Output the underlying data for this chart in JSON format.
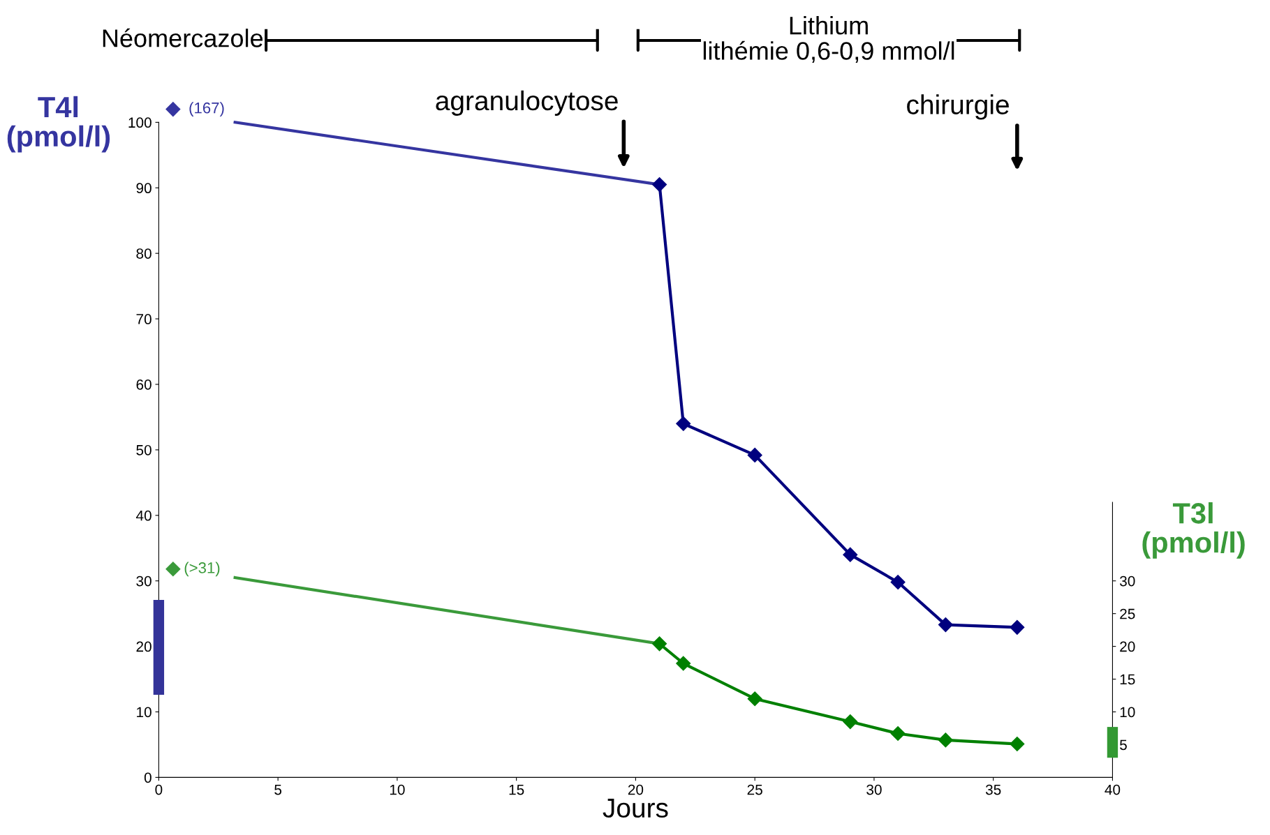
{
  "chart_data": {
    "type": "line",
    "xlabel": "Jours",
    "ylabel": "T4l\n(pmol/l)",
    "y2label": "T3l\n(pmol/l)",
    "xlim": [
      0,
      40
    ],
    "xticks": [
      0,
      5,
      10,
      15,
      20,
      25,
      30,
      35,
      40
    ],
    "ylim": [
      0,
      100
    ],
    "yticks": [
      0,
      10,
      20,
      30,
      40,
      50,
      60,
      70,
      80,
      90,
      100
    ],
    "y2lim": [
      0,
      42
    ],
    "y2ticks": [
      5,
      10,
      15,
      20,
      25,
      30
    ],
    "series": [
      {
        "color": "#3535a0",
        "marker": "none",
        "x": [
          3.2,
          21
        ],
        "values": [
          100,
          90.5
        ]
      },
      {
        "color": "#00007f",
        "marker": "diamond",
        "x": [
          21,
          22,
          25,
          29,
          31,
          33,
          36
        ],
        "values": [
          90.5,
          54,
          49.2,
          34,
          29.8,
          23.3,
          22.9
        ]
      },
      {
        "axis": "y2",
        "color": "#3a9a3a",
        "marker": "none",
        "x": [
          3.2,
          21
        ],
        "values": [
          30.5,
          20.4
        ]
      },
      {
        "axis": "y2",
        "color": "#008000",
        "marker": "diamond",
        "x": [
          21,
          22,
          25,
          29,
          31,
          33,
          36
        ],
        "values": [
          20.4,
          17.4,
          12.0,
          8.5,
          6.7,
          5.7,
          5.1
        ]
      },
      {
        "type": "bar",
        "color": "#333399",
        "x": [
          0
        ],
        "base": [
          12.6
        ],
        "values": [
          14.5
        ]
      },
      {
        "type": "bar",
        "axis": "y2",
        "color": "#339933",
        "x": [
          40
        ],
        "base": [
          3
        ],
        "values": [
          4.7
        ]
      }
    ],
    "annotations": [
      "(167)",
      "(>31)",
      "agranulocytose",
      "chirurgie",
      "Néomercazole",
      "Lithium\nlithémie 0,6-0,9 mmol/l"
    ]
  }
}
